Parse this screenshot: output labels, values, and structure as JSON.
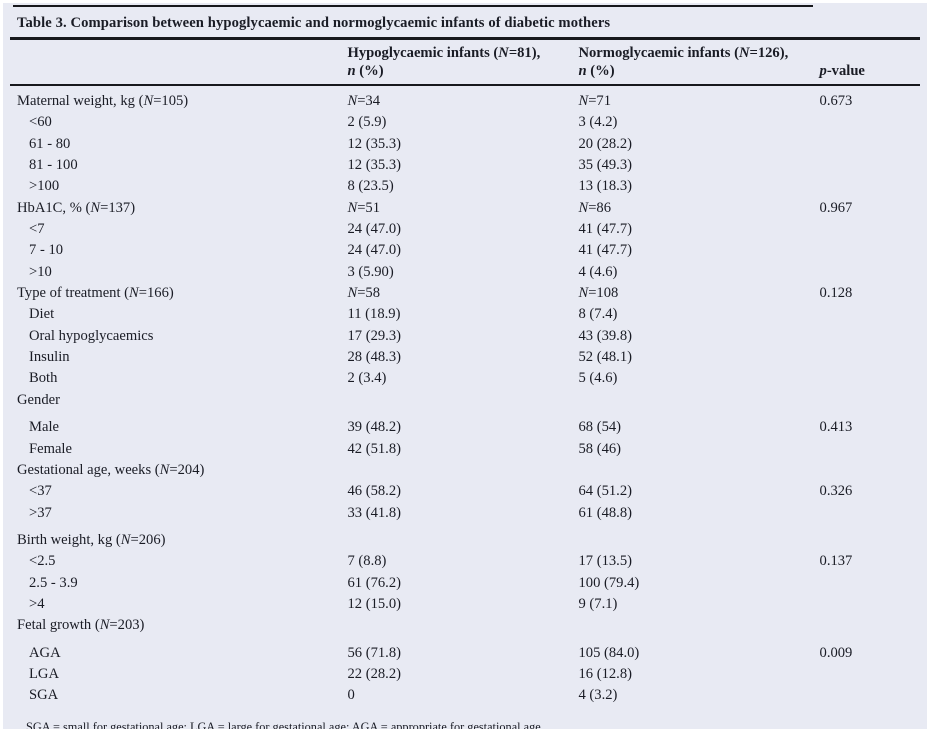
{
  "title": "Table 3. Comparison between hypoglycaemic and normoglycaemic infants of diabetic mothers",
  "colors": {
    "background": "#e8eaf3",
    "text": "#1a1c25",
    "rule": "#17181c"
  },
  "table": {
    "columns": {
      "hypo_line1": "Hypoglycaemic infants (N=81),",
      "hypo_line2": "n (%)",
      "normo_line1": "Normoglycaemic infants (N=126),",
      "normo_line2": "n (%)",
      "pvalue": "p-value"
    },
    "rows": [
      {
        "label": "Maternal weight, kg (N=105)",
        "indent": 0,
        "hypo": "N=34",
        "normo": "N=71",
        "p": "0.673"
      },
      {
        "label": "<60",
        "indent": 1,
        "hypo": "2 (5.9)",
        "normo": "3 (4.2)",
        "p": ""
      },
      {
        "label": "61 - 80",
        "indent": 1,
        "hypo": "12 (35.3)",
        "normo": "20 (28.2)",
        "p": ""
      },
      {
        "label": "81 - 100",
        "indent": 1,
        "hypo": "12 (35.3)",
        "normo": "35 (49.3)",
        "p": ""
      },
      {
        "label": ">100",
        "indent": 1,
        "hypo": "8 (23.5)",
        "normo": "13 (18.3)",
        "p": ""
      },
      {
        "label": "HbA1C, % (N=137)",
        "indent": 0,
        "hypo": "N=51",
        "normo": "N=86",
        "p": "0.967"
      },
      {
        "label": "<7",
        "indent": 1,
        "hypo": "24 (47.0)",
        "normo": "41 (47.7)",
        "p": ""
      },
      {
        "label": "7 - 10",
        "indent": 1,
        "hypo": "24 (47.0)",
        "normo": "41 (47.7)",
        "p": ""
      },
      {
        "label": ">10",
        "indent": 1,
        "hypo": "3 (5.90)",
        "normo": "4 (4.6)",
        "p": ""
      },
      {
        "label": "Type of treatment (N=166)",
        "indent": 0,
        "hypo": "N=58",
        "normo": "N=108",
        "p": "0.128"
      },
      {
        "label": "Diet",
        "indent": 1,
        "hypo": "11 (18.9)",
        "normo": "8 (7.4)",
        "p": ""
      },
      {
        "label": "Oral hypoglycaemics",
        "indent": 1,
        "hypo": "17 (29.3)",
        "normo": "43 (39.8)",
        "p": ""
      },
      {
        "label": "Insulin",
        "indent": 1,
        "hypo": "28 (48.3)",
        "normo": "52 (48.1)",
        "p": ""
      },
      {
        "label": "Both",
        "indent": 1,
        "hypo": "2 (3.4)",
        "normo": "5 (4.6)",
        "p": ""
      },
      {
        "label": "Gender",
        "indent": 0,
        "hypo": "",
        "normo": "",
        "p": ""
      },
      {
        "label": "Male",
        "indent": 1,
        "spacer": true,
        "hypo": "39 (48.2)",
        "normo": "68 (54)",
        "p": "0.413"
      },
      {
        "label": "Female",
        "indent": 1,
        "hypo": "42 (51.8)",
        "normo": "58 (46)",
        "p": ""
      },
      {
        "label": "Gestational age, weeks (N=204)",
        "indent": 0,
        "hypo": "",
        "normo": "",
        "p": ""
      },
      {
        "label": "<37",
        "indent": 1,
        "hypo": "46 (58.2)",
        "normo": "64 (51.2)",
        "p": "0.326"
      },
      {
        "label": ">37",
        "indent": 1,
        "hypo": "33 (41.8)",
        "normo": "61 (48.8)",
        "p": ""
      },
      {
        "label": "Birth weight, kg (N=206)",
        "indent": 0,
        "spacer": true,
        "hypo": "",
        "normo": "",
        "p": ""
      },
      {
        "label": "<2.5",
        "indent": 1,
        "hypo": "7 (8.8)",
        "normo": "17 (13.5)",
        "p": "0.137"
      },
      {
        "label": "2.5 - 3.9",
        "indent": 1,
        "hypo": "61 (76.2)",
        "normo": "100 (79.4)",
        "p": ""
      },
      {
        "label": ">4",
        "indent": 1,
        "hypo": "12 (15.0)",
        "normo": "9 (7.1)",
        "p": ""
      },
      {
        "label": "Fetal growth (N=203)",
        "indent": 0,
        "hypo": "",
        "normo": "",
        "p": ""
      },
      {
        "label": "AGA",
        "indent": 1,
        "spacer": true,
        "hypo": "56 (71.8)",
        "normo": "105 (84.0)",
        "p": "0.009"
      },
      {
        "label": "LGA",
        "indent": 1,
        "hypo": "22 (28.2)",
        "normo": "16 (12.8)",
        "p": ""
      },
      {
        "label": "SGA",
        "indent": 1,
        "hypo": "0",
        "normo": "4 (3.2)",
        "p": ""
      }
    ]
  },
  "footnote": "SGA = small for gestational age; LGA = large for gestational age; AGA = appropriate for gestational age."
}
